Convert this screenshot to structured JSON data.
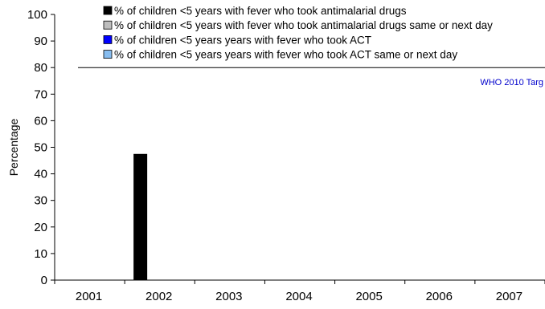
{
  "chart_data": {
    "type": "bar",
    "title": "",
    "xlabel": "",
    "ylabel": "Percentage",
    "ylim": [
      0,
      100
    ],
    "yticks": [
      0,
      10,
      20,
      30,
      40,
      50,
      60,
      70,
      80,
      90,
      100
    ],
    "categories": [
      "2001",
      "2002",
      "2003",
      "2004",
      "2005",
      "2006",
      "2007"
    ],
    "series": [
      {
        "name": "% of children <5 years with fever who took antimalarial drugs",
        "color": "#000000",
        "values": [
          null,
          47.5,
          null,
          null,
          null,
          null,
          null
        ]
      },
      {
        "name": "% of children <5 years with fever who took antimalarial drugs same or next day",
        "color": "#bdbdbd",
        "values": [
          null,
          null,
          null,
          null,
          null,
          null,
          null
        ]
      },
      {
        "name": "% of children <5 years years with fever who took ACT",
        "color": "#0000ff",
        "values": [
          null,
          null,
          null,
          null,
          null,
          null,
          null
        ]
      },
      {
        "name": "% of children <5 years years with fever who took ACT same or next day",
        "color": "#87bdf0",
        "values": [
          null,
          null,
          null,
          null,
          null,
          null,
          null
        ]
      }
    ],
    "reference_line": {
      "value": 80,
      "label": "WHO 2010 Targ",
      "label_color": "#0000cc"
    },
    "grid": false,
    "legend": "top"
  }
}
